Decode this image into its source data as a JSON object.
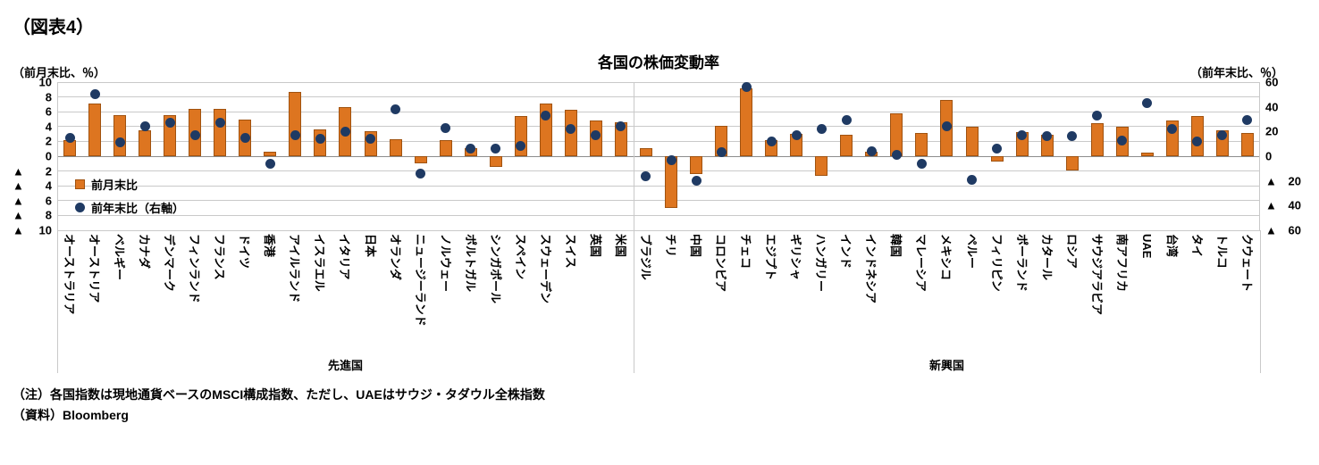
{
  "figure_label": "（図表4）",
  "title": "各国の株価変動率",
  "left_axis_unit": "（前月末比、％）",
  "right_axis_unit": "（前年末比、％）",
  "legend": {
    "bar": "前月末比",
    "dot": "前年末比（右軸）"
  },
  "notes": [
    "（注）各国指数は現地通貨ベースのMSCI構成指数、ただし、UAEはサウジ・タダウル全株指数",
    "（資料）Bloomberg"
  ],
  "colors": {
    "bar_fill": "#dd7520",
    "bar_border": "#a0520f",
    "dot": "#1f3a63",
    "grid": "#c9c9c9",
    "zero_line": "#8c8c8c"
  },
  "chart_data": {
    "type": "bar",
    "subtype": "dual-axis bar + scatter",
    "title": "各国の株価変動率",
    "left_axis": {
      "label": "（前月末比、％）",
      "min": -10,
      "max": 10,
      "tick_labels": [
        "10",
        "8",
        "6",
        "4",
        "2",
        "0",
        "▲ 2",
        "▲ 4",
        "▲ 6",
        "▲ 8",
        "▲ 10"
      ]
    },
    "right_axis": {
      "label": "（前年末比、％）",
      "min": -60,
      "max": 60,
      "tick_labels": [
        "60",
        "40",
        "20",
        "0",
        "▲ 20",
        "▲ 40",
        "▲ 60"
      ]
    },
    "groups": [
      {
        "label": "先進国",
        "count": 23
      },
      {
        "label": "新興国",
        "count": 25
      }
    ],
    "categories": [
      "オーストラリア",
      "オーストリア",
      "ベルギー",
      "カナダ",
      "デンマーク",
      "フィンランド",
      "フランス",
      "ドイツ",
      "香港",
      "アイルランド",
      "イスラエル",
      "イタリア",
      "日本",
      "オランダ",
      "ニュージーランド",
      "ノルウェー",
      "ポルトガル",
      "シンガポール",
      "スペイン",
      "スウェーデン",
      "スイス",
      "英国",
      "米国",
      "ブラジル",
      "チリ",
      "中国",
      "コロンビア",
      "チェコ",
      "エジプト",
      "ギリシャ",
      "ハンガリー",
      "インド",
      "インドネシア",
      "韓国",
      "マレーシア",
      "メキシコ",
      "ペルー",
      "フィリピン",
      "ポーランド",
      "カタール",
      "ロシア",
      "サウジアラビア",
      "南アフリカ",
      "UAE",
      "台湾",
      "タイ",
      "トルコ",
      "クウェート"
    ],
    "series": [
      {
        "name": "前月末比",
        "type": "bar",
        "axis": "left",
        "values": [
          2.2,
          7.1,
          5.5,
          3.5,
          5.5,
          6.4,
          6.4,
          4.9,
          0.6,
          8.7,
          3.6,
          6.6,
          3.4,
          2.3,
          -1.0,
          2.2,
          1.1,
          -1.4,
          5.4,
          7.1,
          6.3,
          4.8,
          4.6,
          1.1,
          -7.0,
          -2.4,
          4.1,
          9.2,
          2.2,
          3.0,
          -2.7,
          2.9,
          0.6,
          5.8,
          3.1,
          7.6,
          4.0,
          -0.7,
          3.3,
          2.9,
          -1.9,
          4.5,
          4.0,
          0.5,
          4.8,
          5.4,
          3.5,
          3.1
        ]
      },
      {
        "name": "前年末比（右軸）",
        "type": "scatter",
        "axis": "right",
        "values": [
          15,
          50,
          11,
          24,
          27,
          17,
          27,
          15,
          -6,
          17,
          14,
          20,
          14,
          38,
          -14,
          23,
          6,
          6,
          8,
          33,
          22,
          17,
          24,
          -16,
          -3,
          -20,
          3,
          56,
          12,
          17,
          22,
          29,
          4,
          1,
          -6,
          24,
          -19,
          6,
          17,
          16,
          16,
          33,
          13,
          43,
          22,
          12,
          17,
          29
        ]
      }
    ]
  }
}
